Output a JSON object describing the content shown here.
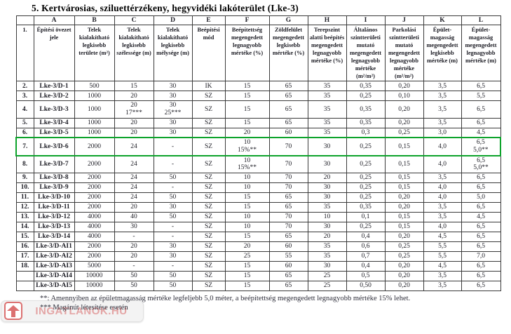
{
  "title": "5. Kertvárosias, sziluettérzékeny, hegyvidéki lakóterület (Lke-3)",
  "colors": {
    "highlight_green": "#0da32b",
    "border": "#3a3a3a",
    "watermark_red": "#d65858"
  },
  "table": {
    "column_letters": [
      "",
      "A",
      "B",
      "C",
      "D",
      "E",
      "F",
      "G",
      "H",
      "I",
      "J",
      "K",
      "L"
    ],
    "header_row": {
      "num": "1.",
      "cells": [
        "Építési övezet jele",
        "Telek kialakítható legkisebb területe (m²)",
        "Telek kialakítható legkisebb szélessége (m)",
        "Telek kialakítható legkisebb mélysége (m)",
        "Beépítési mód",
        "Beépítettség megengedett legnagyobb mértéke (%)",
        "Zöldfelület megengedett legkisebb mértéke (%)",
        "Terepszint alatti beépítés megengedett legnagyobb mértéke (%)",
        "Általános szintterületi mutató megengedett legnagyobb mértéke (m²/m²)",
        "Parkolási szintterületi mutató megengedett legnagyobb mértéke (m²/m²)",
        "Épület-magasság megengedett legkisebb mértéke (m)",
        "Épület-magasság megengedett legnagyobb mértéke (m)"
      ]
    },
    "rows": [
      {
        "num": "2.",
        "highlight": false,
        "cells": [
          "Lke-3/D-1",
          "500",
          "15",
          "30",
          "IK",
          "15",
          "65",
          "35",
          "0,35",
          "0,20",
          "3,5",
          "6,5"
        ]
      },
      {
        "num": "3.",
        "highlight": false,
        "cells": [
          "Lke-3/D-2",
          "1000",
          "20",
          "30",
          "SZ",
          "15",
          "65",
          "35",
          "0,25",
          "0,10",
          "3,5",
          "5,5"
        ]
      },
      {
        "num": "4.",
        "highlight": false,
        "cells": [
          "Lke-3/D-3",
          "1000",
          "20\n17***",
          "30\n25***",
          "SZ",
          "15",
          "65",
          "35",
          "0,35",
          "0,20",
          "3,5",
          "6,5"
        ]
      },
      {
        "num": "5.",
        "highlight": false,
        "cells": [
          "Lke-3/D-4",
          "1000",
          "20",
          "30",
          "SZ",
          "15",
          "65",
          "35",
          "0,35",
          "0,20",
          "3,5",
          "6,5"
        ]
      },
      {
        "num": "6.",
        "highlight": false,
        "cells": [
          "Lke-3/D-5",
          "1000",
          "20",
          "30",
          "SZ",
          "20",
          "60",
          "35",
          "0,3",
          "0,25",
          "3,0",
          "4,5"
        ]
      },
      {
        "num": "7.",
        "highlight": true,
        "cells": [
          "Lke-3/D-6",
          "2000",
          "24",
          "-",
          "SZ",
          "10\n15%**",
          "70",
          "30",
          "0,25",
          "0,15",
          "4,0",
          "6,5\n5,0**"
        ]
      },
      {
        "num": "8.",
        "highlight": false,
        "cells": [
          "Lke-3/D-7",
          "2000",
          "24",
          "-",
          "SZ",
          "10\n15%**",
          "70",
          "30",
          "0,25",
          "0,15",
          "4,0",
          "6,5\n5,0**"
        ]
      },
      {
        "num": "9.",
        "highlight": false,
        "cells": [
          "Lke-3/D-8",
          "2000",
          "24",
          "50",
          "SZ",
          "10",
          "70",
          "20",
          "0,25",
          "0,15",
          "3,5",
          "6,5"
        ]
      },
      {
        "num": "10.",
        "highlight": false,
        "cells": [
          "Lke-3/D-9",
          "2000",
          "24",
          "-",
          "SZ",
          "10",
          "70",
          "30",
          "0,25",
          "0,15",
          "4,0",
          "6,5"
        ]
      },
      {
        "num": "11.",
        "highlight": false,
        "cells": [
          "Lke-3/D-10",
          "2000",
          "24",
          "50",
          "SZ",
          "15",
          "65",
          "30",
          "0,25",
          "0,20",
          "4,0",
          "5,0"
        ]
      },
      {
        "num": "12.",
        "highlight": false,
        "cells": [
          "Lke-3/D-11",
          "2000",
          "20",
          "30",
          "SZ",
          "15",
          "65",
          "35",
          "0,35",
          "0,20",
          "3,5",
          "6,5"
        ]
      },
      {
        "num": "13.",
        "highlight": false,
        "cells": [
          "Lke-3/D-12",
          "4000",
          "40",
          "50",
          "SZ",
          "10",
          "70",
          "10",
          "0,1",
          "0,15",
          "3,5",
          "4,5"
        ]
      },
      {
        "num": "14.",
        "highlight": false,
        "cells": [
          "Lke-3/D-13",
          "4000",
          "30",
          "-",
          "SZ",
          "10",
          "70",
          "30",
          "0,25",
          "0,15",
          "4,0",
          "6,5"
        ]
      },
      {
        "num": "15.",
        "highlight": false,
        "cells": [
          "Lke-3/D-14",
          "4000",
          "-",
          "-",
          "SZ",
          "15",
          "65",
          "20",
          "0,4",
          "0,20",
          "4,5",
          "6,5"
        ]
      },
      {
        "num": "16.",
        "highlight": false,
        "cells": [
          "Lke-3/D-AI1",
          "2000",
          "20",
          "30",
          "SZ",
          "20",
          "60",
          "35",
          "0,6",
          "0,25",
          "5,5",
          "6,5"
        ]
      },
      {
        "num": "17.",
        "highlight": false,
        "cells": [
          "Lke-3/D-AI2",
          "2000",
          "20",
          "30",
          "SZ",
          "25",
          "55",
          "35",
          "0,7",
          "0,25",
          "5,5",
          "7,0"
        ]
      },
      {
        "num": "18.",
        "highlight": false,
        "cells": [
          "Lke-3/D-AI3",
          "5000",
          "-",
          "-",
          "SZ",
          "15",
          "60",
          "30",
          "0,4",
          "0,20",
          "4,5",
          "6,5"
        ]
      },
      {
        "num": "",
        "highlight": false,
        "cells": [
          "Lke-3/D-AI4",
          "10000",
          "50",
          "50",
          "SZ",
          "15",
          "65",
          "25",
          "0,5",
          "0,20",
          "3,5",
          "6,5"
        ]
      },
      {
        "num": "",
        "highlight": false,
        "cells": [
          "Lke-3/D-AI5",
          "10000",
          "50",
          "50",
          "SZ",
          "15",
          "65",
          "25",
          "0,50",
          "0,20",
          "3,5",
          "6,5"
        ]
      }
    ]
  },
  "footnotes": [
    "**: Amennyiben az épületmagasság mértéke legfeljebb 5,0 méter, a beépítettség megengedett legnagyobb mértéke 15% lehet.",
    "*** Magánút létesítése esetén"
  ],
  "watermark": {
    "text": "INGATLANOK.HU",
    "icon": "house-icon"
  }
}
